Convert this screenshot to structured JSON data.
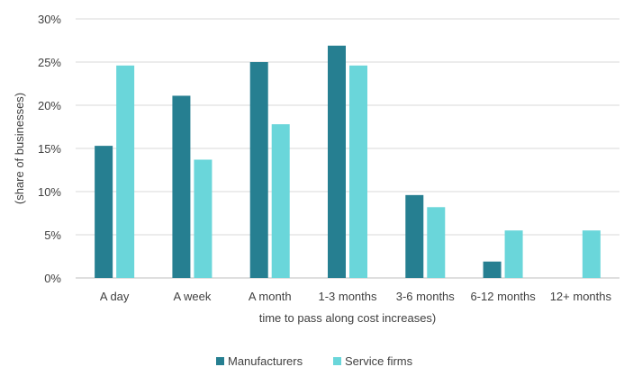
{
  "chart_data": {
    "type": "bar",
    "categories": [
      "A day",
      "A week",
      "A month",
      "1-3 months",
      "3-6 months",
      "6-12 months",
      "12+ months"
    ],
    "series": [
      {
        "name": "Manufacturers",
        "color": "#267f91",
        "values": [
          15.3,
          21.1,
          25.0,
          26.9,
          9.6,
          1.9,
          null
        ]
      },
      {
        "name": "Service firms",
        "color": "#6ad6da",
        "values": [
          24.6,
          13.7,
          17.8,
          24.6,
          8.2,
          5.5,
          5.5
        ]
      }
    ],
    "xlabel": "time to pass along cost increases)",
    "ylabel": "(share of businesses)",
    "ylim": [
      0,
      30
    ],
    "yticks": [
      0,
      5,
      10,
      15,
      20,
      25,
      30
    ],
    "ytick_labels": [
      "0%",
      "5%",
      "10%",
      "15%",
      "20%",
      "25%",
      "30%"
    ],
    "grid": true,
    "legend_position": "bottom-center"
  }
}
